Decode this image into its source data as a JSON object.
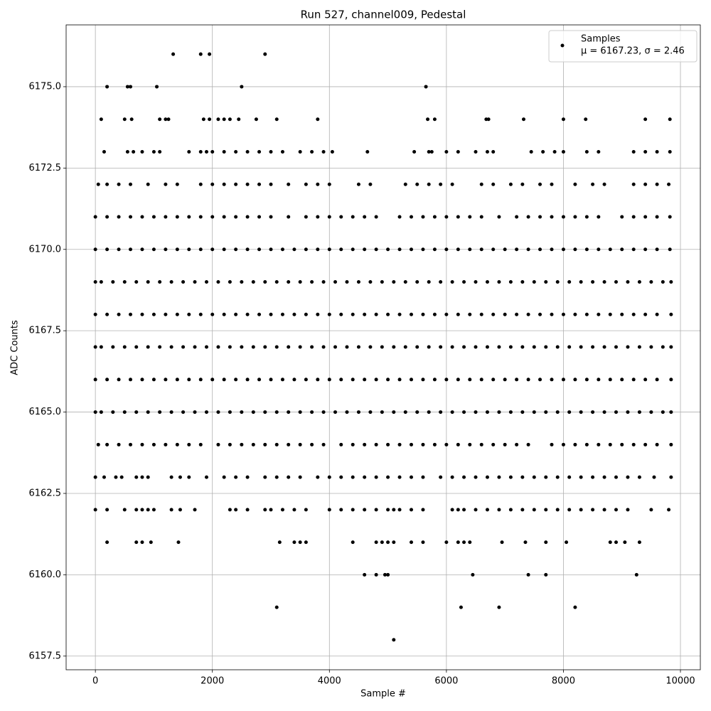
{
  "chart_data": {
    "type": "scatter",
    "title": "Run 527, channel009, Pedestal",
    "xlabel": "Sample #",
    "ylabel": "ADC Counts",
    "xlim": [
      -500,
      10340
    ],
    "ylim": [
      6157.08,
      6176.9
    ],
    "xticks": [
      0,
      2000,
      4000,
      6000,
      8000,
      10000
    ],
    "yticks": [
      6157.5,
      {
        "value": 6160,
        "label": "6160.0"
      },
      6162.5,
      {
        "value": 6165,
        "label": "6165.0"
      },
      6167.5,
      {
        "value": 6170,
        "label": "6170.0"
      },
      6172.5,
      {
        "value": 6175,
        "label": "6175.0"
      }
    ],
    "grid": true,
    "legend": "upper right",
    "legend_text": "μ = 6167.23, σ = 2.46",
    "series": [
      {
        "name": "Samples",
        "color": "#000000",
        "levels": [
          {
            "y": 6176,
            "x": [
              1330,
              1800,
              1950,
              2900
            ]
          },
          {
            "y": 6175,
            "x": [
              200,
              550,
              600,
              1050,
              2500,
              5650
            ]
          },
          {
            "y": 6174,
            "x": [
              100,
              500,
              620,
              1100,
              1200,
              1250,
              1850,
              1950,
              2100,
              2200,
              2300,
              2450,
              2750,
              3100,
              3800,
              5680,
              5800,
              6680,
              6720,
              7320,
              8000,
              8380,
              9400,
              9820
            ]
          },
          {
            "y": 6173,
            "x": [
              150,
              550,
              650,
              800,
              1000,
              1100,
              1600,
              1800,
              1900,
              2000,
              2200,
              2400,
              2600,
              2800,
              3000,
              3200,
              3500,
              3700,
              3900,
              4050,
              4650,
              5450,
              5700,
              5750,
              6000,
              6200,
              6500,
              6700,
              6800,
              7450,
              7650,
              7850,
              8000,
              8400,
              8600,
              9200,
              9400,
              9600,
              9820
            ]
          },
          {
            "y": 6172,
            "x": [
              50,
              200,
              400,
              600,
              900,
              1200,
              1400,
              1800,
              2000,
              2200,
              2400,
              2600,
              2800,
              3000,
              3300,
              3600,
              3800,
              4000,
              4500,
              4700,
              5300,
              5500,
              5700,
              5900,
              6100,
              6600,
              6800,
              7100,
              7300,
              7600,
              7800,
              8200,
              8500,
              8700,
              9200,
              9400,
              9600,
              9800
            ]
          },
          {
            "y": 6171,
            "x": [
              0,
              200,
              400,
              600,
              800,
              1000,
              1200,
              1400,
              1600,
              1800,
              2000,
              2200,
              2400,
              2600,
              2800,
              3000,
              3300,
              3600,
              3800,
              4000,
              4200,
              4400,
              4600,
              4800,
              5200,
              5400,
              5600,
              5800,
              6000,
              6200,
              6400,
              6600,
              6900,
              7200,
              7400,
              7600,
              7800,
              8000,
              8200,
              8400,
              8600,
              9000,
              9200,
              9400,
              9600,
              9820
            ]
          },
          {
            "y": 6170,
            "x": [
              0,
              200,
              400,
              600,
              800,
              1000,
              1200,
              1400,
              1600,
              1800,
              2000,
              2200,
              2400,
              2600,
              2800,
              3000,
              3200,
              3400,
              3600,
              3800,
              4000,
              4200,
              4400,
              4600,
              4800,
              5000,
              5200,
              5400,
              5600,
              5800,
              6000,
              6200,
              6400,
              6600,
              6800,
              7000,
              7200,
              7400,
              7600,
              7800,
              8000,
              8200,
              8400,
              8600,
              8800,
              9000,
              9200,
              9400,
              9600,
              9820
            ]
          },
          {
            "y": 6169,
            "x": [
              0,
              100,
              300,
              500,
              700,
              900,
              1100,
              1300,
              1500,
              1700,
              1900,
              2100,
              2300,
              2500,
              2700,
              2900,
              3100,
              3300,
              3500,
              3700,
              3900,
              4100,
              4300,
              4500,
              4700,
              4900,
              5100,
              5300,
              5500,
              5700,
              5900,
              6100,
              6300,
              6500,
              6700,
              6900,
              7100,
              7300,
              7500,
              7700,
              7900,
              8100,
              8300,
              8500,
              8700,
              8900,
              9100,
              9300,
              9500,
              9700,
              9840
            ]
          },
          {
            "y": 6168,
            "x": [
              0,
              200,
              400,
              600,
              800,
              1000,
              1200,
              1400,
              1600,
              1800,
              2000,
              2200,
              2400,
              2600,
              2800,
              3000,
              3200,
              3400,
              3600,
              3800,
              4000,
              4200,
              4400,
              4600,
              4800,
              5000,
              5200,
              5400,
              5600,
              5800,
              6000,
              6200,
              6400,
              6600,
              6800,
              7000,
              7200,
              7400,
              7600,
              7800,
              8000,
              8200,
              8400,
              8600,
              8800,
              9000,
              9200,
              9400,
              9600,
              9840
            ]
          },
          {
            "y": 6167,
            "x": [
              0,
              100,
              300,
              500,
              700,
              900,
              1100,
              1300,
              1500,
              1700,
              1900,
              2100,
              2300,
              2500,
              2700,
              2900,
              3100,
              3300,
              3500,
              3700,
              3900,
              4100,
              4300,
              4500,
              4700,
              4900,
              5100,
              5300,
              5500,
              5700,
              5900,
              6100,
              6300,
              6500,
              6700,
              6900,
              7100,
              7300,
              7500,
              7700,
              7900,
              8100,
              8300,
              8500,
              8700,
              8900,
              9100,
              9300,
              9500,
              9700,
              9840
            ]
          },
          {
            "y": 6166,
            "x": [
              0,
              200,
              400,
              600,
              800,
              1000,
              1200,
              1400,
              1600,
              1800,
              2000,
              2200,
              2400,
              2600,
              2800,
              3000,
              3200,
              3400,
              3600,
              3800,
              4000,
              4200,
              4400,
              4600,
              4800,
              5000,
              5200,
              5400,
              5600,
              5800,
              6000,
              6200,
              6400,
              6600,
              6800,
              7000,
              7200,
              7400,
              7600,
              7800,
              8000,
              8200,
              8400,
              8600,
              8800,
              9000,
              9200,
              9400,
              9600,
              9840
            ]
          },
          {
            "y": 6165,
            "x": [
              0,
              100,
              300,
              500,
              700,
              900,
              1100,
              1300,
              1500,
              1700,
              1900,
              2100,
              2300,
              2500,
              2700,
              2900,
              3100,
              3300,
              3500,
              3700,
              3900,
              4100,
              4300,
              4500,
              4700,
              4900,
              5100,
              5300,
              5500,
              5700,
              5900,
              6100,
              6300,
              6500,
              6700,
              6900,
              7100,
              7300,
              7500,
              7700,
              7900,
              8100,
              8300,
              8500,
              8700,
              8900,
              9100,
              9300,
              9500,
              9700,
              9840
            ]
          },
          {
            "y": 6164,
            "x": [
              50,
              200,
              400,
              600,
              800,
              1000,
              1200,
              1400,
              1600,
              1800,
              2100,
              2300,
              2500,
              2700,
              2900,
              3100,
              3300,
              3500,
              3700,
              3900,
              4200,
              4400,
              4600,
              4800,
              5000,
              5200,
              5400,
              5600,
              5800,
              6000,
              6200,
              6400,
              6600,
              6800,
              7000,
              7200,
              7400,
              7800,
              8000,
              8200,
              8400,
              8600,
              8800,
              9000,
              9200,
              9400,
              9600,
              9840
            ]
          },
          {
            "y": 6163,
            "x": [
              0,
              150,
              350,
              450,
              700,
              800,
              900,
              1300,
              1450,
              1600,
              1900,
              2200,
              2400,
              2600,
              2900,
              3100,
              3300,
              3500,
              3800,
              4000,
              4200,
              4400,
              4600,
              4800,
              5000,
              5200,
              5400,
              5600,
              5900,
              6100,
              6300,
              6500,
              6700,
              6900,
              7100,
              7300,
              7500,
              7700,
              7900,
              8100,
              8300,
              8500,
              8700,
              8900,
              9100,
              9300,
              9550,
              9840
            ]
          },
          {
            "y": 6162,
            "x": [
              0,
              200,
              500,
              700,
              800,
              900,
              1000,
              1300,
              1450,
              1700,
              2300,
              2400,
              2600,
              2900,
              3000,
              3200,
              3400,
              3600,
              4000,
              4200,
              4400,
              4600,
              4800,
              5000,
              5100,
              5200,
              5400,
              5600,
              6100,
              6200,
              6300,
              6500,
              6700,
              6900,
              7100,
              7300,
              7500,
              7700,
              7900,
              8100,
              8300,
              8500,
              8700,
              8900,
              9100,
              9500,
              9800
            ]
          },
          {
            "y": 6161,
            "x": [
              200,
              700,
              800,
              950,
              1420,
              3150,
              3400,
              3500,
              3600,
              4400,
              4800,
              4900,
              5000,
              5100,
              5400,
              5600,
              6000,
              6200,
              6300,
              6400,
              6950,
              7350,
              7700,
              8050,
              8800,
              8900,
              9050,
              9300
            ]
          },
          {
            "y": 6160,
            "x": [
              4600,
              4800,
              4950,
              5000,
              6450,
              7400,
              7700,
              9250
            ]
          },
          {
            "y": 6159,
            "x": [
              3100,
              6250,
              6900,
              8200
            ]
          },
          {
            "y": 6158,
            "x": [
              5100
            ]
          }
        ]
      }
    ]
  }
}
